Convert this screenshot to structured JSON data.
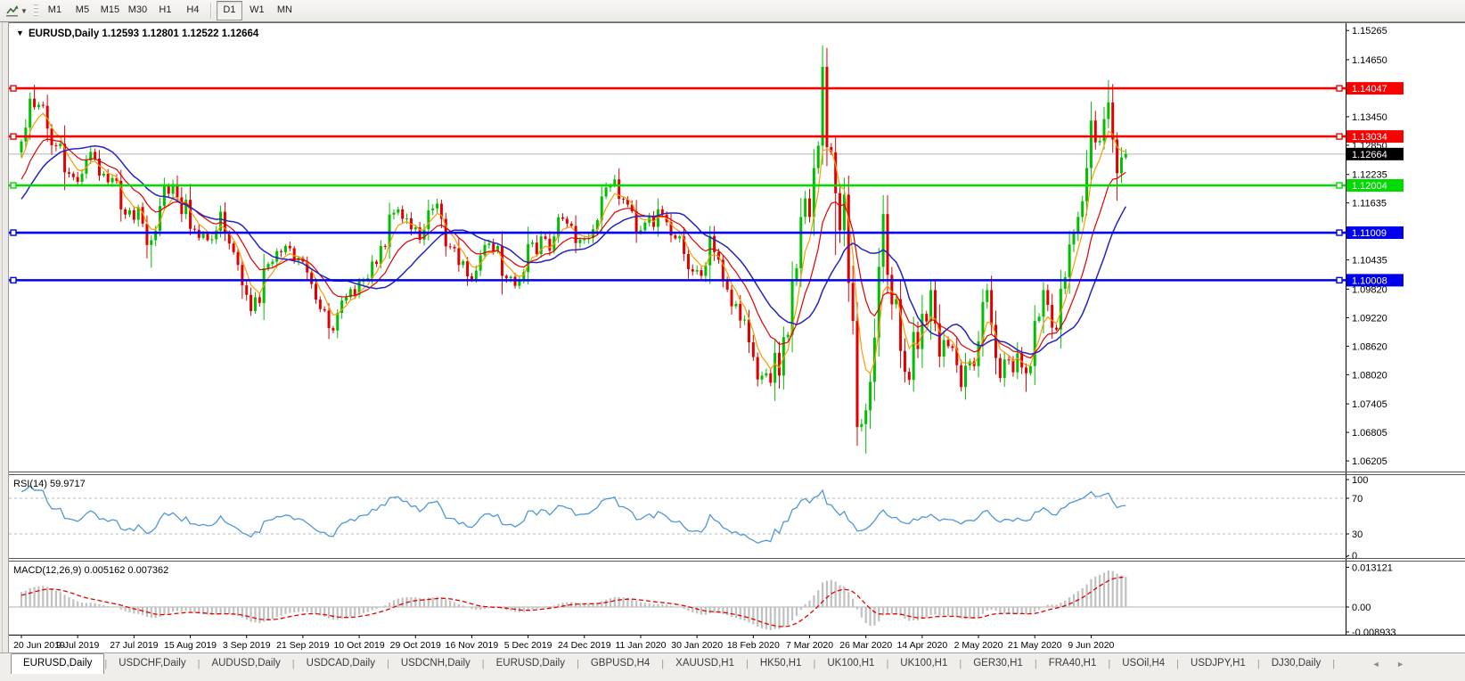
{
  "toolbar": {
    "timeframes": [
      "M1",
      "M5",
      "M15",
      "M30",
      "H1",
      "H4",
      "D1",
      "W1",
      "MN"
    ],
    "selected": "D1"
  },
  "chart": {
    "title_symbol": "EURUSD,Daily",
    "title_ohlc": "1.12593 1.12801 1.12522 1.12664",
    "axis_ticks": [
      "1.15265",
      "1.14650",
      "1.13450",
      "1.12850",
      "1.12235",
      "1.11635",
      "1.10435",
      "1.09820",
      "1.09220",
      "1.08620",
      "1.08020",
      "1.07405",
      "1.06805",
      "1.06205"
    ],
    "hlines": [
      {
        "label": "1.14047",
        "price": 1.14047,
        "color": "#f80000"
      },
      {
        "label": "1.13034",
        "price": 1.13034,
        "color": "#f80000"
      },
      {
        "label": "1.12004",
        "price": 1.12004,
        "color": "#00dc00"
      },
      {
        "label": "1.11009",
        "price": 1.11009,
        "color": "#0000ee"
      },
      {
        "label": "1.10008",
        "price": 1.10008,
        "color": "#0000ee"
      }
    ],
    "current_price": {
      "label": "1.12664",
      "value": 1.12664,
      "badge_color": "#000000",
      "line_color": "#b4b4b4"
    }
  },
  "rsi": {
    "label": "RSI(14) 59.9717",
    "ticks": [
      {
        "text": "100",
        "value": 100
      },
      {
        "text": "70",
        "value": 70
      },
      {
        "text": "30",
        "value": 30
      },
      {
        "text": "0",
        "value": 0
      }
    ],
    "levels": [
      70,
      30
    ],
    "line_color": "#4f97d7"
  },
  "macd": {
    "label": "MACD(12,26,9) 0.005162 0.007362",
    "ticks": [
      {
        "text": "0.013121",
        "value": 0.013121
      },
      {
        "text": "0.00",
        "value": 0
      },
      {
        "text": "-0.008933",
        "value": -0.008933
      }
    ],
    "hist_color": "#c0c0c0",
    "signal_color": "#e00000"
  },
  "dates": [
    "20 Jun 2019",
    "9 Jul 2019",
    "27 Jul 2019",
    "15 Aug 2019",
    "3 Sep 2019",
    "21 Sep 2019",
    "10 Oct 2019",
    "29 Oct 2019",
    "16 Nov 2019",
    "5 Dec 2019",
    "24 Dec 2019",
    "11 Jan 2020",
    "30 Jan 2020",
    "18 Feb 2020",
    "7 Mar 2020",
    "26 Mar 2020",
    "14 Apr 2020",
    "2 May 2020",
    "21 May 2020",
    "9 Jun 2020"
  ],
  "tabs": {
    "items": [
      "EURUSD,Daily",
      "USDCHF,Daily",
      "AUDUSD,Daily",
      "USDCAD,Daily",
      "USDCNH,Daily",
      "EURUSD,Daily",
      "GBPUSD,H4",
      "XAUUSD,H1",
      "HK50,H1",
      "UK100,H1",
      "UK100,H1",
      "GER30,H1",
      "FRA40,H1",
      "USOil,H4",
      "USDJPY,H1",
      "DJ30,Daily"
    ],
    "active_index": 0,
    "scroll_left": "◄",
    "scroll_right": "►"
  },
  "chart_data": {
    "type": "candlestick",
    "title": "EURUSD, Daily",
    "ylim": [
      1.06,
      1.154
    ],
    "x_tick_step_bars": 13,
    "open_first": 1.127,
    "colors": {
      "up": "#00be00",
      "down": "#e00000",
      "ma_fast": "#ff9900",
      "ma_mid": "#e00000",
      "ma_slow": "#2424c0"
    },
    "moving_averages": [
      {
        "type": "ema",
        "period": 5,
        "color_key": "ma_fast"
      },
      {
        "type": "ema",
        "period": 13,
        "color_key": "ma_mid"
      },
      {
        "type": "sma",
        "period": 20,
        "color_key": "ma_slow"
      }
    ],
    "pre_ramp": {
      "from": 1.106,
      "to": 1.126,
      "count": 20
    },
    "closes": [
      1.1293,
      1.1322,
      1.1383,
      1.1365,
      1.137,
      1.1368,
      1.132,
      1.1285,
      1.1283,
      1.1288,
      1.1228,
      1.1225,
      1.1218,
      1.1208,
      1.1225,
      1.1253,
      1.1271,
      1.1257,
      1.1221,
      1.1225,
      1.1207,
      1.1216,
      1.121,
      1.115,
      1.1139,
      1.1148,
      1.1128,
      1.1155,
      1.112,
      1.1075,
      1.1085,
      1.1105,
      1.1157,
      1.12,
      1.1183,
      1.1203,
      1.1175,
      1.114,
      1.117,
      1.1109,
      1.1107,
      1.109,
      1.1098,
      1.1085,
      1.1087,
      1.1105,
      1.1145,
      1.11,
      1.1078,
      1.106,
      1.1033,
      1.099,
      1.097,
      1.0936,
      1.0965,
      1.0953,
      1.1026,
      1.1035,
      1.104,
      1.1062,
      1.106,
      1.1073,
      1.1068,
      1.1042,
      1.1048,
      1.104,
      1.1017,
      1.0993,
      1.096,
      1.094,
      1.0937,
      1.09,
      1.0895,
      1.0932,
      1.0958,
      1.0965,
      1.0982,
      1.097,
      1.0998,
      1.1003,
      1.1005,
      1.104,
      1.1035,
      1.1073,
      1.1071,
      1.1139,
      1.1143,
      1.115,
      1.113,
      1.1131,
      1.1108,
      1.1112,
      1.1086,
      1.1108,
      1.1148,
      1.1152,
      1.1162,
      1.113,
      1.1072,
      1.1071,
      1.1068,
      1.1033,
      1.1041,
      1.1009,
      1.1003,
      1.1021,
      1.1053,
      1.1075,
      1.1078,
      1.1062,
      1.1073,
      1.101,
      1.1005,
      1.1008,
      1.0989,
      1.1001,
      1.1018,
      1.1077,
      1.108,
      1.1056,
      1.1093,
      1.1088,
      1.1063,
      1.1093,
      1.1133,
      1.113,
      1.112,
      1.1115,
      1.1079,
      1.1086,
      1.1087,
      1.109,
      1.1108,
      1.1127,
      1.1177,
      1.1196,
      1.12,
      1.1213,
      1.1172,
      1.1171,
      1.116,
      1.1146,
      1.1103,
      1.1106,
      1.1122,
      1.1134,
      1.1113,
      1.115,
      1.1139,
      1.1123,
      1.1095,
      1.1089,
      1.1093,
      1.1056,
      1.1024,
      1.1019,
      1.1022,
      1.101,
      1.1032,
      1.1094,
      1.106,
      1.1044,
      1.1,
      1.0981,
      1.0946,
      1.0951,
      1.0916,
      1.0918,
      1.087,
      1.0839,
      1.0792,
      1.08,
      1.0805,
      1.0785,
      1.0848,
      1.08,
      1.0881,
      1.0886,
      1.1,
      1.1026,
      1.1134,
      1.1173,
      1.1134,
      1.1237,
      1.1284,
      1.145,
      1.1281,
      1.127,
      1.1184,
      1.1106,
      1.1181,
      1.0995,
      1.0915,
      1.0692,
      1.0698,
      1.0727,
      1.0787,
      1.088,
      1.1029,
      1.114,
      1.1012,
      1.095,
      1.0961,
      1.0852,
      1.0808,
      1.0791,
      1.0892,
      1.0856,
      1.093,
      1.0914,
      1.098,
      1.091,
      1.084,
      1.0875,
      1.0862,
      1.0858,
      1.0822,
      1.0776,
      1.0821,
      1.083,
      1.082,
      1.0872,
      1.0955,
      1.098,
      1.0907,
      1.0837,
      1.0795,
      1.0834,
      1.0832,
      1.0807,
      1.0847,
      1.0817,
      1.0805,
      1.082,
      1.0915,
      1.0924,
      1.098,
      1.0949,
      1.0901,
      1.0897,
      1.0983,
      1.1007,
      1.1076,
      1.1102,
      1.1134,
      1.1167,
      1.1237,
      1.1337,
      1.1291,
      1.1294,
      1.134,
      1.1375,
      1.1297,
      1.1226,
      1.1259,
      1.12664
    ],
    "wick_overrides": {
      "3": {
        "h": 1.1412
      },
      "30": {
        "l": 1.1027
      },
      "53": {
        "l": 1.0926
      },
      "73": {
        "l": 1.0879
      },
      "173": {
        "l": 1.0778
      },
      "185": {
        "h": 1.1495
      },
      "188": {
        "l": 1.1054
      },
      "195": {
        "l": 1.0636
      },
      "232": {
        "l": 1.0766
      },
      "251": {
        "h": 1.1422
      },
      "253": {
        "l": 1.1168
      }
    }
  }
}
